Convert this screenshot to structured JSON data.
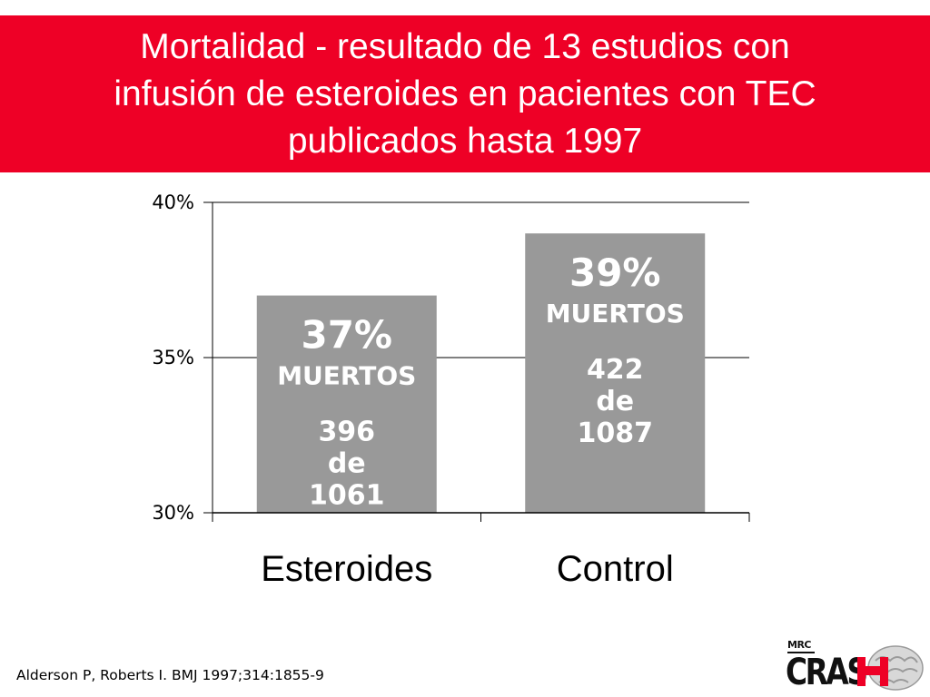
{
  "slide": {
    "title": "Mortalidad - resultado de 13 estudios con\ninfusión de esteroides en pacientes con TEC\npublicados hasta 1997",
    "citation": "Alderson P, Roberts I. BMJ 1997;314:1855-9",
    "colors": {
      "title_background": "#ee0026",
      "title_text": "#ffffff",
      "bar_fill": "#999999",
      "bar_text": "#ffffff",
      "axis": "#000000"
    }
  },
  "logo": {
    "top_text": "MRC",
    "main_text": "CRAS",
    "icon": "brain-with-h-icon",
    "color": "#ee0026"
  },
  "chart_data": {
    "type": "bar",
    "categories": [
      "Esteroides",
      "Control"
    ],
    "values": [
      37,
      39
    ],
    "value_unit": "%",
    "ylim": [
      30,
      40
    ],
    "yticks": [
      {
        "value": 40,
        "label": "40%"
      },
      {
        "value": 35,
        "label": "35%"
      },
      {
        "value": 30,
        "label": "30%"
      }
    ],
    "grid": true,
    "data_labels": [
      {
        "pct": "37%",
        "word": "MUERTOS",
        "deaths": "396",
        "sep": "de",
        "total": "1061"
      },
      {
        "pct": "39%",
        "word": "MUERTOS",
        "deaths": "422",
        "sep": "de",
        "total": "1087"
      }
    ]
  }
}
